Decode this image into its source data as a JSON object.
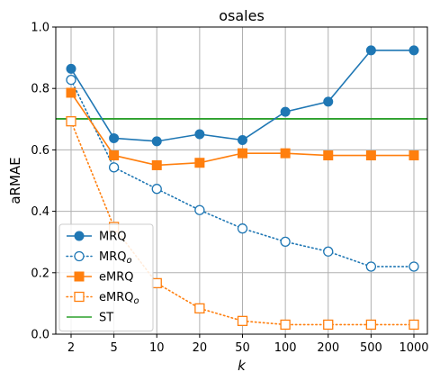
{
  "chart_data": {
    "type": "line",
    "title": "osales",
    "xlabel": "k",
    "ylabel": "aRMAE",
    "categories": [
      "2",
      "5",
      "10",
      "20",
      "50",
      "100",
      "200",
      "500",
      "1000"
    ],
    "ylim": [
      0.0,
      1.0
    ],
    "yticks": [
      "0.0",
      "0.2",
      "0.4",
      "0.6",
      "0.8",
      "1.0"
    ],
    "grid": true,
    "legend_position": "lower-left",
    "series": [
      {
        "name": "MRQ",
        "color": "#1f77b4",
        "line_style": "solid",
        "marker": "circle-filled",
        "values": [
          0.864,
          0.638,
          0.628,
          0.651,
          0.632,
          0.724,
          0.757,
          0.924,
          0.924
        ]
      },
      {
        "name": "MRQ",
        "name_subscript": "o",
        "color": "#1f77b4",
        "line_style": "dotted",
        "marker": "circle-open",
        "values": [
          0.828,
          0.543,
          0.473,
          0.404,
          0.344,
          0.301,
          0.269,
          0.22,
          0.22
        ]
      },
      {
        "name": "eMRQ",
        "color": "#ff7f0e",
        "line_style": "solid",
        "marker": "square-filled",
        "values": [
          0.786,
          0.582,
          0.55,
          0.558,
          0.589,
          0.589,
          0.582,
          0.582,
          0.582
        ]
      },
      {
        "name": "eMRQ",
        "name_subscript": "o",
        "color": "#ff7f0e",
        "line_style": "dotted",
        "marker": "square-open",
        "values": [
          0.693,
          0.349,
          0.166,
          0.084,
          0.043,
          0.031,
          0.031,
          0.031,
          0.031
        ]
      },
      {
        "name": "ST",
        "color": "#2ca02c",
        "line_style": "solid",
        "marker": "none",
        "horizontal_value": 0.701
      }
    ]
  }
}
